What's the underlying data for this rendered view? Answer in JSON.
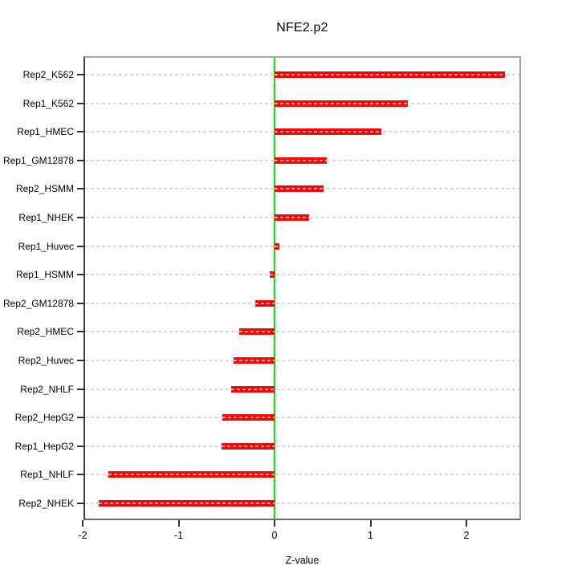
{
  "chart_data": {
    "type": "bar",
    "orientation": "horizontal",
    "title": "NFE2.p2",
    "xlabel": "Z-value",
    "ylabel": "",
    "categories": [
      "Rep2_K562",
      "Rep1_K562",
      "Rep1_HMEC",
      "Rep1_GM12878",
      "Rep2_HSMM",
      "Rep1_NHEK",
      "Rep1_Huvec",
      "Rep1_HSMM",
      "Rep2_GM12878",
      "Rep2_HMEC",
      "Rep2_Huvec",
      "Rep2_NHLF",
      "Rep2_HepG2",
      "Rep1_HepG2",
      "Rep1_NHLF",
      "Rep2_NHEK"
    ],
    "values": [
      2.4,
      1.39,
      1.11,
      0.54,
      0.51,
      0.36,
      0.05,
      -0.05,
      -0.2,
      -0.37,
      -0.43,
      -0.45,
      -0.54,
      -0.55,
      -1.73,
      -1.83
    ],
    "xlim": [
      -1.975,
      2.552
    ],
    "xticks": [
      -2,
      -1,
      0,
      1,
      2
    ],
    "xtick_labels": [
      "-2",
      "-1",
      "0",
      "1",
      "2"
    ],
    "grid": "horizontal-dashed",
    "legend": "none",
    "bar_color": "#ff0000",
    "zero_line_color": "#00f000",
    "grid_color": "#d9d9d9"
  }
}
